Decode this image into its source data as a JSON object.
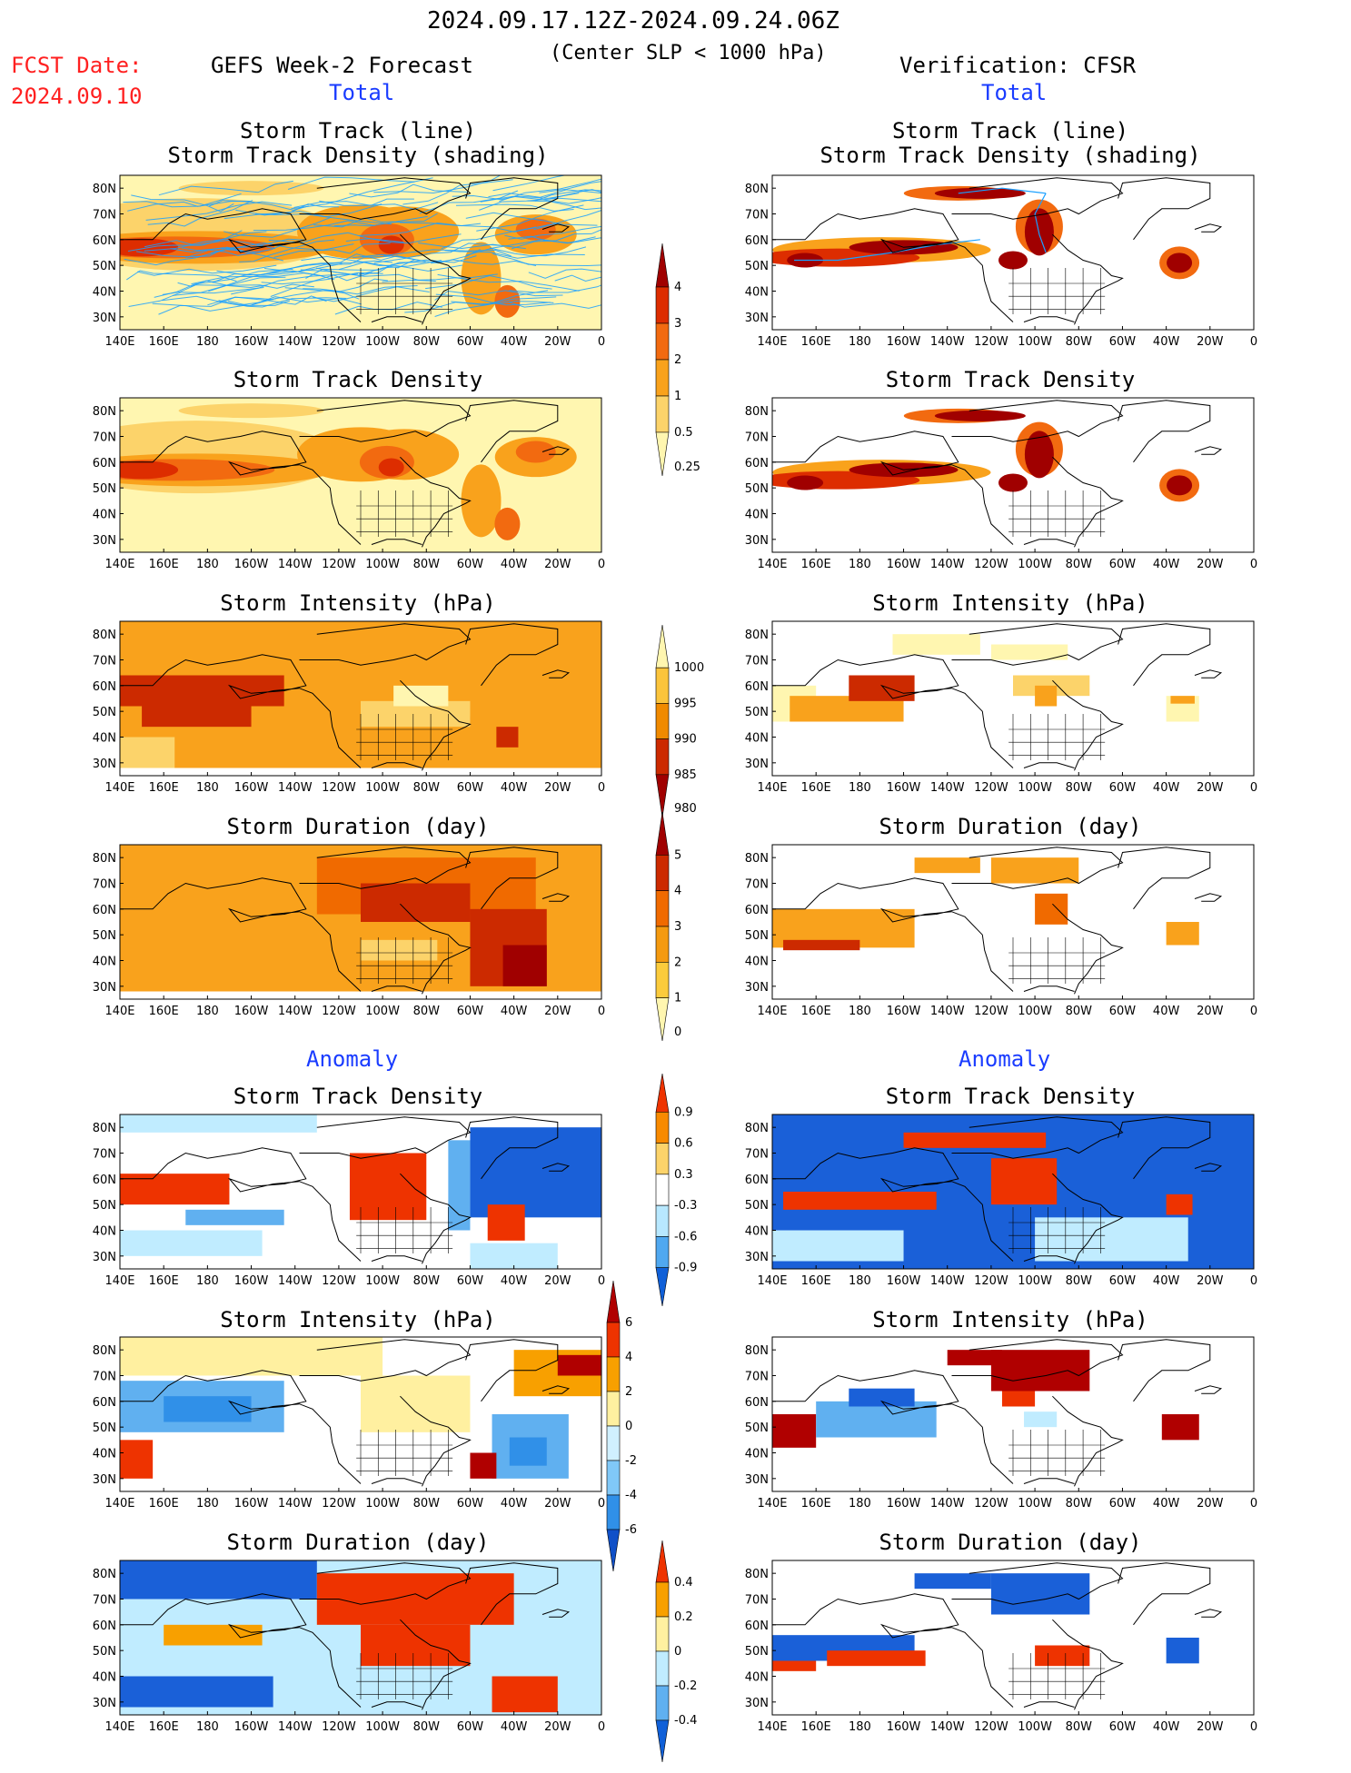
{
  "header": {
    "date_range": "2024.09.17.12Z-2024.09.24.06Z",
    "criterion": "(Center SLP < 1000 hPa)",
    "fcst_label": "FCST Date:",
    "fcst_date": "2024.09.10",
    "left_title": "GEFS Week-2 Forecast",
    "right_title": "Verification: CFSR"
  },
  "sections": {
    "total": "Total",
    "anomaly": "Anomaly"
  },
  "panel_titles": {
    "track_line": "Storm Track (line)",
    "track_shading": "Storm Track Density (shading)",
    "density": "Storm Track Density",
    "intensity": "Storm Intensity (hPa)",
    "duration": "Storm Duration (day)"
  },
  "axes": {
    "lon_labels": [
      "140E",
      "160E",
      "180",
      "160W",
      "140W",
      "120W",
      "100W",
      "80W",
      "60W",
      "40W",
      "20W",
      "0"
    ],
    "lat_labels": [
      "80N",
      "70N",
      "60N",
      "50N",
      "40N",
      "30N"
    ]
  },
  "colorbars": {
    "density_total": {
      "labels": [
        "4",
        "3",
        "2",
        "1",
        "0.5",
        "0.25"
      ],
      "colors": [
        "#a00000",
        "#dd2d00",
        "#f26a10",
        "#f9a21c",
        "#fcd36a",
        "#fff6b0"
      ]
    },
    "intensity_total": {
      "labels": [
        "1000",
        "995",
        "990",
        "985",
        "980"
      ],
      "colors": [
        "#fff6b0",
        "#fbc43c",
        "#f08a00",
        "#cc2a00",
        "#a00000"
      ]
    },
    "duration_total": {
      "labels": [
        "5",
        "4",
        "3",
        "2",
        "1",
        "0"
      ],
      "colors": [
        "#a00000",
        "#cc2a00",
        "#f06a00",
        "#f49a10",
        "#fbcb3c",
        "#fff6b0"
      ]
    },
    "density_anom": {
      "labels": [
        "0.9",
        "0.6",
        "0.3",
        "-0.3",
        "-0.6",
        "-0.9"
      ],
      "colors": [
        "#ee3300",
        "#f88a00",
        "#fcd36a",
        "#ffffff",
        "#b8e8ff",
        "#50a8f0",
        "#1060d8"
      ]
    },
    "intensity_anom": {
      "labels": [
        "6",
        "4",
        "2",
        "0",
        "-2",
        "-4",
        "-6"
      ],
      "colors": [
        "#b00000",
        "#ee3300",
        "#f8a000",
        "#fff0a0",
        "#d0f0ff",
        "#80c8f8",
        "#3090e8",
        "#1050c8"
      ]
    },
    "duration_anom": {
      "labels": [
        "0.4",
        "0.2",
        "0",
        "-0.2",
        "-0.4"
      ],
      "colors": [
        "#ee3300",
        "#f8a000",
        "#fff0a0",
        "#c0ecff",
        "#60b0f0",
        "#1060d8"
      ]
    }
  }
}
